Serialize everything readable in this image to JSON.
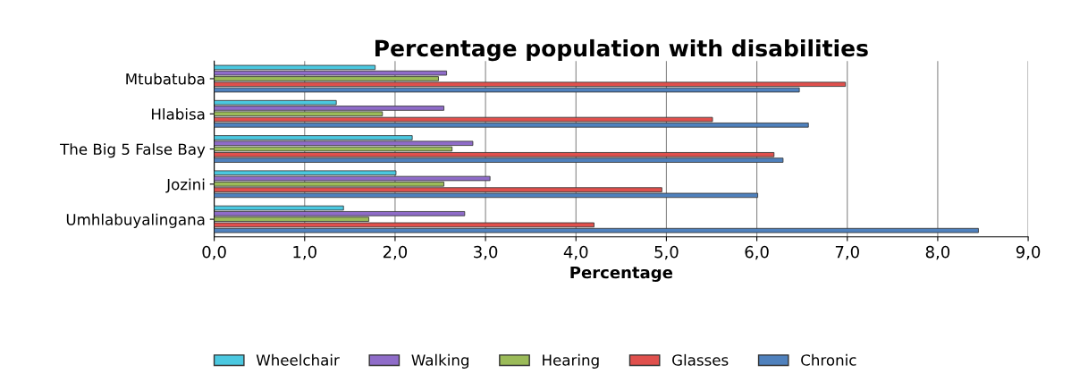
{
  "chart_data": {
    "type": "bar",
    "orientation": "horizontal",
    "title": "Percentage population with disabilities",
    "xlabel": "Percentage",
    "categories": [
      "Mtubatuba",
      "Hlabisa",
      "The Big 5 False Bay",
      "Jozini",
      "Umhlabuyalingana"
    ],
    "series": [
      {
        "name": "Wheelchair",
        "color": "#4bc8e0",
        "values": [
          1.78,
          1.35,
          2.19,
          2.01,
          1.43
        ]
      },
      {
        "name": "Walking",
        "color": "#8f6cc9",
        "values": [
          2.57,
          2.54,
          2.86,
          3.05,
          2.77
        ]
      },
      {
        "name": "Hearing",
        "color": "#9bbb59",
        "values": [
          2.48,
          1.86,
          2.63,
          2.54,
          1.71
        ]
      },
      {
        "name": "Glasses",
        "color": "#e0504d",
        "values": [
          6.98,
          5.51,
          6.19,
          4.95,
          4.2
        ]
      },
      {
        "name": "Chronic",
        "color": "#4f81bd",
        "values": [
          6.47,
          6.57,
          6.29,
          6.01,
          8.45
        ]
      }
    ],
    "xlim": [
      0,
      9
    ],
    "xticks": [
      {
        "value": 0,
        "label": "0,0"
      },
      {
        "value": 1,
        "label": "1,0"
      },
      {
        "value": 2,
        "label": "2,0"
      },
      {
        "value": 3,
        "label": "3,0"
      },
      {
        "value": 4,
        "label": "4,0"
      },
      {
        "value": 5,
        "label": "5,0"
      },
      {
        "value": 6,
        "label": "6,0"
      },
      {
        "value": 7,
        "label": "7,0"
      },
      {
        "value": 8,
        "label": "8,0"
      },
      {
        "value": 9,
        "label": "9,0"
      }
    ],
    "grid": "x",
    "legend": "bottom"
  }
}
